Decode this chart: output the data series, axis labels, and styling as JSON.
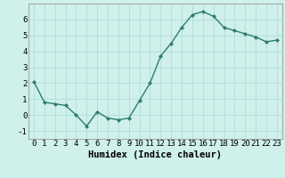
{
  "x": [
    0,
    1,
    2,
    3,
    4,
    5,
    6,
    7,
    8,
    9,
    10,
    11,
    12,
    13,
    14,
    15,
    16,
    17,
    18,
    19,
    20,
    21,
    22,
    23
  ],
  "y": [
    2.1,
    0.8,
    0.7,
    0.6,
    0.0,
    -0.7,
    0.2,
    -0.2,
    -0.3,
    -0.2,
    0.9,
    2.0,
    3.7,
    4.5,
    5.5,
    6.3,
    6.5,
    6.2,
    5.5,
    5.3,
    5.1,
    4.9,
    4.6,
    4.7
  ],
  "line_color": "#2e7d6e",
  "marker": "D",
  "marker_size": 2.0,
  "bg_color": "#cff0eb",
  "grid_color": "#b0ddd8",
  "xlabel": "Humidex (Indice chaleur)",
  "xlim": [
    -0.5,
    23.5
  ],
  "ylim": [
    -1.5,
    7.0
  ],
  "yticks": [
    -1,
    0,
    1,
    2,
    3,
    4,
    5,
    6
  ],
  "xticks": [
    0,
    1,
    2,
    3,
    4,
    5,
    6,
    7,
    8,
    9,
    10,
    11,
    12,
    13,
    14,
    15,
    16,
    17,
    18,
    19,
    20,
    21,
    22,
    23
  ],
  "xlabel_fontsize": 7.5,
  "tick_fontsize": 6.5
}
